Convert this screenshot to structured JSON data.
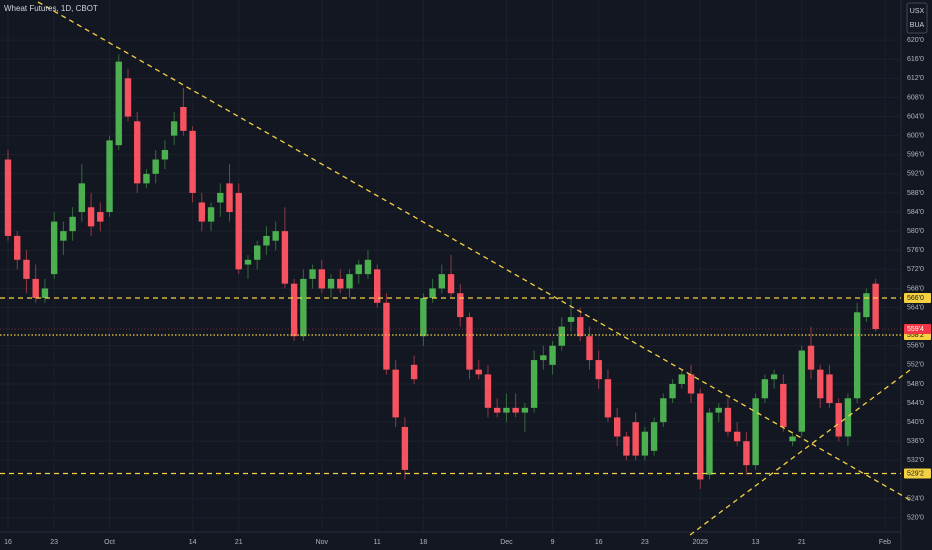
{
  "chart_data": {
    "type": "candlestick",
    "title": "Wheat Futures, 1D, CBOT",
    "currency": "USX",
    "unit": "BUA",
    "categories": [
      "16",
      null,
      null,
      null,
      null,
      "23",
      null,
      null,
      null,
      null,
      null,
      "Oct",
      null,
      null,
      null,
      null,
      null,
      null,
      null,
      null,
      "14",
      null,
      null,
      null,
      null,
      "21",
      null,
      null,
      null,
      null,
      null,
      null,
      null,
      null,
      "Nov",
      null,
      null,
      null,
      null,
      null,
      "11",
      null,
      null,
      null,
      null,
      "18",
      null,
      null,
      null,
      null,
      null,
      null,
      null,
      null,
      "Dec",
      null,
      null,
      null,
      null,
      "9",
      null,
      null,
      null,
      null,
      "16",
      null,
      null,
      null,
      null,
      "23",
      null,
      null,
      null,
      null,
      null,
      "2025",
      null,
      null,
      null,
      null,
      null,
      "13",
      null,
      null,
      null,
      null,
      "21",
      null,
      null,
      null,
      null,
      null,
      null,
      null,
      null,
      "Feb"
    ],
    "open": [
      595,
      579,
      574,
      570,
      566,
      571,
      578,
      580,
      584,
      585,
      584,
      584,
      598,
      612,
      603,
      590,
      592,
      595,
      600,
      606,
      601,
      586,
      582,
      586,
      590,
      588,
      573,
      574,
      577,
      578,
      580,
      569,
      558,
      570,
      572,
      568,
      570,
      568,
      571,
      571,
      572,
      565,
      551,
      539,
      552,
      558,
      566,
      568,
      571,
      567,
      562,
      551,
      550,
      543,
      542,
      543,
      542,
      543,
      553,
      552,
      556,
      561,
      562,
      558,
      553,
      549,
      541,
      537,
      540,
      533,
      534,
      540,
      545,
      548,
      550,
      546,
      529,
      542,
      543,
      538,
      536,
      531,
      545,
      549,
      548,
      536,
      538,
      556,
      551,
      550,
      544,
      537,
      545,
      562,
      569,
      null
    ],
    "high": [
      597,
      580,
      576,
      573,
      570,
      584,
      582,
      585,
      594,
      588,
      586,
      600,
      617,
      614,
      605,
      593,
      597,
      599,
      605,
      610,
      602,
      588,
      586,
      590,
      594,
      590,
      575,
      578,
      581,
      582,
      585,
      570,
      572,
      573,
      574,
      571,
      572,
      572,
      574,
      576,
      573,
      567,
      553,
      541,
      554,
      567,
      570,
      573,
      575,
      569,
      563,
      553,
      552,
      545,
      546,
      546,
      544,
      555,
      556,
      557,
      562,
      566,
      564,
      560,
      555,
      551,
      543,
      538,
      542,
      539,
      541,
      546,
      549,
      551,
      552,
      547,
      543,
      544,
      545,
      540,
      538,
      546,
      550,
      551,
      550,
      538,
      556,
      560,
      552,
      552,
      545,
      546,
      565,
      568,
      570,
      null
    ],
    "low": [
      578,
      572,
      567,
      565,
      565,
      570,
      575,
      578,
      582,
      579,
      580,
      583,
      597,
      603,
      588,
      589,
      590,
      593,
      598,
      600,
      586,
      580,
      580,
      583,
      582,
      571,
      570,
      572,
      575,
      576,
      568,
      557,
      557,
      568,
      567,
      566,
      567,
      566,
      569,
      570,
      564,
      550,
      539,
      528,
      548,
      556,
      565,
      567,
      566,
      560,
      549,
      549,
      541,
      541,
      540,
      541,
      538,
      542,
      551,
      550,
      555,
      559,
      557,
      551,
      547,
      540,
      535,
      532,
      532,
      532,
      533,
      539,
      544,
      547,
      544,
      526,
      528,
      540,
      537,
      535,
      529,
      530,
      544,
      547,
      538,
      535,
      537,
      549,
      543,
      543,
      536,
      535,
      544,
      561,
      559,
      null
    ],
    "close": [
      579,
      574,
      570,
      566,
      568,
      582,
      580,
      583,
      590,
      581,
      582,
      599,
      615.5,
      604,
      590,
      592,
      595,
      597,
      603,
      601,
      588,
      582,
      585,
      588,
      584,
      572,
      574,
      577,
      579,
      580,
      569,
      558,
      570,
      572,
      568,
      570,
      568,
      571,
      573,
      574,
      565,
      551,
      541,
      530,
      549,
      566,
      568,
      571,
      567,
      562,
      551,
      550,
      543,
      542,
      543,
      542,
      543,
      553,
      554,
      556,
      560,
      562,
      558,
      553,
      549,
      541,
      537,
      533,
      533,
      538,
      540,
      545,
      548,
      550,
      546,
      528,
      542,
      543,
      538,
      536,
      531,
      545,
      549,
      550,
      539,
      537,
      555,
      551,
      545,
      544,
      537,
      545,
      563,
      567,
      559.5,
      null
    ],
    "up_color": "#4caf50",
    "down_color": "#f7525f",
    "ylim": [
      517,
      628.4
    ],
    "yticks": [
      {
        "value": 620,
        "label": "620'0"
      },
      {
        "value": 616,
        "label": "616'0"
      },
      {
        "value": 612,
        "label": "612'0"
      },
      {
        "value": 608,
        "label": "608'0"
      },
      {
        "value": 604,
        "label": "604'0"
      },
      {
        "value": 600,
        "label": "600'0"
      },
      {
        "value": 596,
        "label": "596'0"
      },
      {
        "value": 592,
        "label": "592'0"
      },
      {
        "value": 588,
        "label": "588'0"
      },
      {
        "value": 584,
        "label": "584'0"
      },
      {
        "value": 580,
        "label": "580'0"
      },
      {
        "value": 576,
        "label": "576'0"
      },
      {
        "value": 572,
        "label": "572'0"
      },
      {
        "value": 568,
        "label": "568'0"
      },
      {
        "value": 564,
        "label": "564'0"
      },
      {
        "value": 556,
        "label": "556'0"
      },
      {
        "value": 552,
        "label": "552'0"
      },
      {
        "value": 548,
        "label": "548'0"
      },
      {
        "value": 544,
        "label": "544'0"
      },
      {
        "value": 540,
        "label": "540'0"
      },
      {
        "value": 536,
        "label": "536'0"
      },
      {
        "value": 532,
        "label": "532'0"
      },
      {
        "value": 524,
        "label": "524'0"
      },
      {
        "value": 520,
        "label": "520'0"
      }
    ],
    "grid": true,
    "level_color": "#f5d142",
    "levels": [
      {
        "value": 566,
        "label": "566'0",
        "style": "dashed"
      },
      {
        "value": 558.25,
        "label": "558'2",
        "style": "dotted"
      },
      {
        "value": 529.25,
        "label": "529'2",
        "style": "dashed"
      }
    ],
    "last_price": {
      "value": 559.5,
      "label": "559'4",
      "color": "#f23645"
    }
  }
}
